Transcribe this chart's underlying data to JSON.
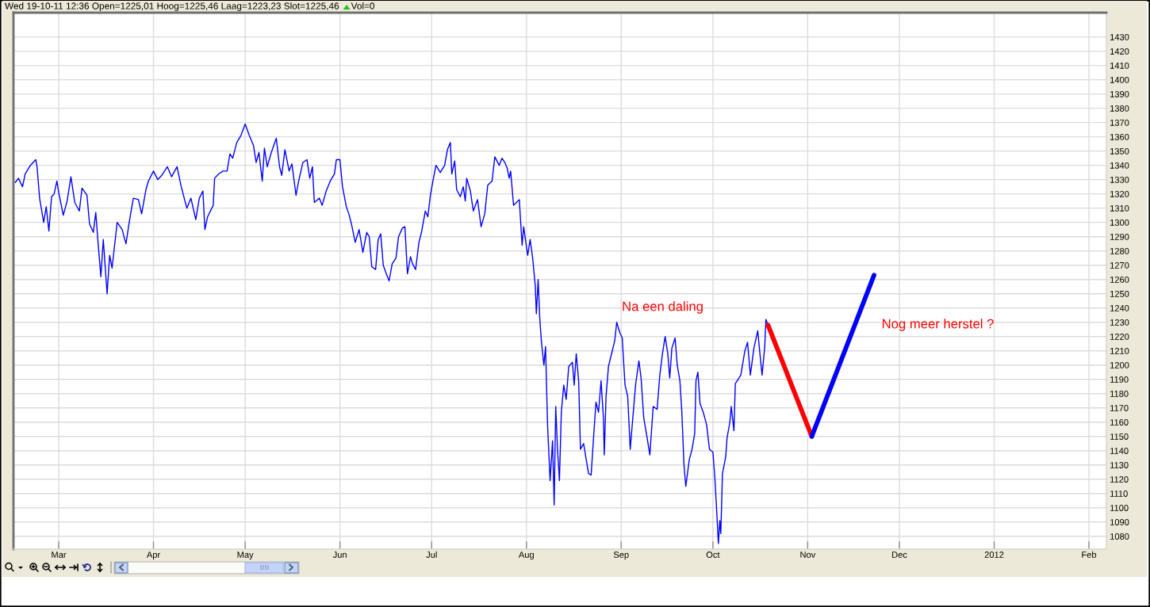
{
  "chart_data": {
    "type": "line",
    "annotations": [
      "Wed 19-10-11 12:36 Open=1225,01 Hoog=1225,46 Laag=1223,23 Slot=1225,46",
      "Vol=0",
      "Na een daling",
      "Nog meer herstel ?"
    ],
    "series": [
      {
        "color": "#0000ff",
        "x": [
          "2011-02-14T19:00",
          "2011-02-15T20:00",
          "2011-02-17T04:00",
          "2011-02-18T01:00",
          "2011-02-19T18:00",
          "2011-02-21T12:00",
          "2011-02-21T22:00",
          "2011-02-22T18:00",
          "2011-02-24T02:00",
          "2011-02-24T22:00",
          "2011-02-25T19:00",
          "2011-02-26T16:00",
          "2011-02-27T12:00",
          "2011-02-28T10:00",
          "2011-03-01",
          "2011-03-02T12:00",
          "2011-03-03T18:00",
          "2011-03-05",
          "2011-03-06T06:00",
          "2011-03-07T18:00",
          "2011-03-08T15:00",
          "2011-03-10T06:00",
          "2011-03-11T02:00",
          "2011-03-12T08:00",
          "2011-03-13T03:00",
          "2011-03-13T19:00",
          "2011-03-14T19:00",
          "2011-03-15T14:00",
          "2011-03-16T20:00",
          "2011-03-17T16:00",
          "2011-03-18T11:00",
          "2011-03-19T07:00",
          "2011-03-20T03:00",
          "2011-03-21T18:00",
          "2011-03-23",
          "2011-03-24T05:00",
          "2011-03-25T10:00",
          "2011-03-27T02:00",
          "2011-03-28T03:00",
          "2011-03-29T13:00",
          "2011-03-30T08:00",
          "2011-04-01",
          "2011-04-02T09:00",
          "2011-04-03T17:00",
          "2011-04-05T13:00",
          "2011-04-06T22:00",
          "2011-04-08T17:00",
          "2011-04-10T02:00",
          "2011-04-11T22:00",
          "2011-04-13T06:00",
          "2011-04-14T20:00",
          "2011-04-16",
          "2011-04-17T04:00",
          "2011-04-17T20:00",
          "2011-04-18T17:00",
          "2011-04-20T13:00",
          "2011-04-21",
          "2011-04-22T08:00",
          "2011-04-23T17:00",
          "2011-04-25T02:00",
          "2011-04-26",
          "2011-04-26T22:00",
          "2011-04-28T06:00",
          "2011-04-29T15:00",
          "2011-05-01",
          "2011-05-02T08:00",
          "2011-05-03T17:00",
          "2011-05-04T14:00",
          "2011-05-05T12:00",
          "2011-05-06T14:00",
          "2011-05-07T07:00",
          "2011-05-08T05:00",
          "2011-05-09T13:00",
          "2011-05-11T04:00",
          "2011-05-12T06:00",
          "2011-05-12T23:00",
          "2011-05-14",
          "2011-05-15T09:00",
          "2011-05-16T07:00",
          "2011-05-17T15:00",
          "2011-05-18T12:00",
          "2011-05-19T21:00",
          "2011-05-21T05:00",
          "2011-05-22T03:00",
          "2011-05-23",
          "2011-05-23T15:00",
          "2011-05-25T06:00",
          "2011-05-26T04:00",
          "2011-05-27T12:00",
          "2011-05-28T20:00",
          "2011-05-30T05:00",
          "2011-05-30T20:00",
          "2011-06-01",
          "2011-06-01T20:00",
          "2011-06-03T02:00",
          "2011-06-03T22:00",
          "2011-06-04T18:00",
          "2011-06-06",
          "2011-06-07T06:00",
          "2011-06-08T12:00",
          "2011-06-09T18:00",
          "2011-06-10T14:00",
          "2011-06-11T10:00",
          "2011-06-12T16:00",
          "2011-06-13T12:00",
          "2011-06-14T08:00",
          "2011-06-15T04:00",
          "2011-06-16",
          "2011-06-17T02:00",
          "2011-06-18T02:00",
          "2011-06-19T08:00",
          "2011-06-20T04:00",
          "2011-06-21T10:00",
          "2011-06-22T06:00",
          "2011-06-23T02:00",
          "2011-06-24T02:00",
          "2011-06-24T18:00",
          "2011-06-25T18:00",
          "2011-06-26T20:00",
          "2011-06-27T16:00",
          "2011-06-28T22:00",
          "2011-06-29T18:00",
          "2011-06-30T14:00",
          "2011-07-01T12:00",
          "2011-07-02T10:00",
          "2011-07-03T20:00",
          "2011-07-05T06:00",
          "2011-07-06T04:00",
          "2011-07-07T03:00",
          "2011-07-07T14:00",
          "2011-07-08T13:00",
          "2011-07-09T04:00",
          "2011-07-10T09:00",
          "2011-07-11T08:00",
          "2011-07-12",
          "2011-07-12T11:00",
          "2011-07-13T16:00",
          "2011-07-14T15:00",
          "2011-07-16",
          "2011-07-17T04:00",
          "2011-07-18T09:00",
          "2011-07-19T08:00",
          "2011-07-20T18:00",
          "2011-07-21T16:00",
          "2011-07-23T02:00",
          "2011-07-24",
          "2011-07-24T23:00",
          "2011-07-25T17:00",
          "2011-07-26T09:00",
          "2011-07-26T20:00",
          "2011-07-27T19:00",
          "2011-07-29T16:00",
          "2011-07-30T14:00",
          "2011-07-31T02:00",
          "2011-08-01T10:00",
          "2011-08-02T05:00",
          "2011-08-03T01:00",
          "2011-08-03T21:00",
          "2011-08-04T06:00",
          "2011-08-04T20:00",
          "2011-08-05T08:00",
          "2011-08-05T21:00",
          "2011-08-06T17:00",
          "2011-08-07T06:00",
          "2011-08-07T22:00",
          "2011-08-08T18:00",
          "2011-08-09T13:00",
          "2011-08-10T02:00",
          "2011-08-10T14:00",
          "2011-08-11T04:00",
          "2011-08-11T19:00",
          "2011-08-12T10:00",
          "2011-08-13T05:00",
          "2011-08-14",
          "2011-08-14T20:00",
          "2011-08-16T01:00",
          "2011-08-16T15:00",
          "2011-08-17T07:00",
          "2011-08-18T02:00",
          "2011-08-18T16:00",
          "2011-08-19T17:00",
          "2011-08-20T13:00",
          "2011-08-21T08:00",
          "2011-08-22T04:00",
          "2011-08-22T23:00",
          "2011-08-23T18:00",
          "2011-08-24T14:00",
          "2011-08-25T10:00",
          "2011-08-26T05:00",
          "2011-08-26T11:00",
          "2011-08-27T01:00",
          "2011-08-27T20:00",
          "2011-08-29T02:00",
          "2011-08-29T21:00",
          "2011-08-30T13:00",
          "2011-08-31T12:00",
          "2011-09-01T08:00",
          "2011-09-02T06:00",
          "2011-09-03T03:00",
          "2011-09-03T23:00",
          "2011-09-04T21:00",
          "2011-09-05T18:00",
          "2011-09-06T19:00",
          "2011-09-07T12:00",
          "2011-09-08T09:00",
          "2011-09-09T06:00",
          "2011-09-10T09:00",
          "2011-09-11T11:00",
          "2011-09-12T18:00",
          "2011-09-13T15:00",
          "2011-09-14T12:00",
          "2011-09-15T09:00",
          "2011-09-16T06:00",
          "2011-09-16T21:00",
          "2011-09-17T14:00",
          "2011-09-18T15:00",
          "2011-09-19T08:00",
          "2011-09-20T05:00",
          "2011-09-20T20:00",
          "2011-09-21T13:00",
          "2011-09-22T03:00",
          "2011-09-23T07:00",
          "2011-09-24T04:00",
          "2011-09-25T01:00",
          "2011-09-25T11:00",
          "2011-09-26T02:00",
          "2011-09-26T19:00",
          "2011-09-27T20:00",
          "2011-09-28T23:00",
          "2011-09-29T21:00",
          "2011-10-01",
          "2011-10-01T15:00",
          "2011-10-02T02:00",
          "2011-10-02T19:00",
          "2011-10-03T06:00",
          "2011-10-03T14:00",
          "2011-10-04T03:00",
          "2011-10-05T05:00",
          "2011-10-05T15:00",
          "2011-10-06T13:00",
          "2011-10-07",
          "2011-10-07T21:00",
          "2011-10-08T08:00",
          "2011-10-10T03:00",
          "2011-10-11T11:00",
          "2011-10-12T08:00",
          "2011-10-13T06:00",
          "2011-10-14T10:00",
          "2011-10-15T16:00",
          "2011-10-16T09:00",
          "2011-10-17T02:00",
          "2011-10-17T23:00",
          "2011-10-18T08:00",
          "2011-10-19T01:00"
        ],
        "values": [
          1328,
          1331,
          1325,
          1334,
          1340,
          1344,
          1339,
          1317,
          1300,
          1311,
          1294,
          1318,
          1320,
          1329,
          1321,
          1305,
          1315,
          1332,
          1314,
          1308,
          1324,
          1319,
          1299,
          1293,
          1307,
          1288,
          1262,
          1288,
          1250,
          1277,
          1268,
          1284,
          1300,
          1295,
          1285,
          1302,
          1317,
          1316,
          1306,
          1323,
          1329,
          1336,
          1330,
          1333,
          1339,
          1332,
          1339,
          1325,
          1310,
          1317,
          1302,
          1317,
          1322,
          1295,
          1304,
          1312,
          1331,
          1334,
          1336,
          1336,
          1348,
          1345,
          1356,
          1361,
          1369,
          1361,
          1354,
          1342,
          1349,
          1329,
          1352,
          1339,
          1349,
          1359,
          1339,
          1333,
          1351,
          1336,
          1341,
          1319,
          1329,
          1342,
          1344,
          1331,
          1339,
          1314,
          1317,
          1312,
          1322,
          1329,
          1334,
          1344,
          1344,
          1325,
          1311,
          1306,
          1299,
          1286,
          1295,
          1279,
          1293,
          1290,
          1269,
          1267,
          1288,
          1292,
          1270,
          1265,
          1259,
          1271,
          1275,
          1290,
          1296,
          1297,
          1264,
          1276,
          1271,
          1267,
          1286,
          1293,
          1308,
          1304,
          1319,
          1330,
          1340,
          1335,
          1340,
          1351,
          1356,
          1334,
          1343,
          1323,
          1318,
          1325,
          1315,
          1331,
          1322,
          1308,
          1316,
          1297,
          1306,
          1326,
          1329,
          1346,
          1340,
          1345,
          1342,
          1338,
          1331,
          1336,
          1312,
          1316,
          1284,
          1297,
          1277,
          1288,
          1275,
          1256,
          1236,
          1260,
          1234,
          1217,
          1200,
          1213,
          1158,
          1119,
          1147,
          1102,
          1171,
          1141,
          1119,
          1167,
          1186,
          1176,
          1199,
          1202,
          1186,
          1208,
          1189,
          1141,
          1145,
          1134,
          1124,
          1123,
          1149,
          1174,
          1167,
          1189,
          1162,
          1137,
          1178,
          1199,
          1210,
          1217,
          1230,
          1223,
          1219,
          1186,
          1178,
          1141,
          1165,
          1187,
          1203,
          1191,
          1163,
          1152,
          1137,
          1171,
          1169,
          1193,
          1208,
          1220,
          1208,
          1191,
          1212,
          1219,
          1200,
          1189,
          1167,
          1130,
          1115,
          1134,
          1141,
          1152,
          1189,
          1195,
          1173,
          1167,
          1158,
          1141,
          1139,
          1121,
          1104,
          1075,
          1091,
          1082,
          1124,
          1136,
          1149,
          1160,
          1171,
          1154,
          1187,
          1193,
          1210,
          1216,
          1193,
          1212,
          1224,
          1208,
          1193,
          1213,
          1232,
          1228
        ]
      },
      {
        "color": "#ff0000",
        "x": [
          "2011-10-19T01:00",
          "2011-11-02T08:00"
        ],
        "values": [
          1228,
          1150
        ]
      },
      {
        "color": "#0000ff",
        "x": [
          "2011-11-02T08:00",
          "2011-11-22T17:00"
        ],
        "values": [
          1150,
          1263
        ]
      }
    ],
    "xlim": [
      "2011-02-14T05:00",
      "2012-02-06T17:00"
    ],
    "xticks": [
      {
        "value": "2011-03-01",
        "label": "Mar"
      },
      {
        "value": "2011-04-01",
        "label": "Apr"
      },
      {
        "value": "2011-05-01",
        "label": "May"
      },
      {
        "value": "2011-06-01",
        "label": "Jun"
      },
      {
        "value": "2011-07-01",
        "label": "Jul"
      },
      {
        "value": "2011-08-01",
        "label": "Aug"
      },
      {
        "value": "2011-09-01",
        "label": "Sep"
      },
      {
        "value": "2011-10-01",
        "label": "Oct"
      },
      {
        "value": "2011-11-01",
        "label": "Nov"
      },
      {
        "value": "2011-12-01",
        "label": "Dec"
      },
      {
        "value": "2012-01-01",
        "label": "2012"
      },
      {
        "value": "2012-02-01",
        "label": "Feb"
      }
    ],
    "ylim": [
      1071,
      1447
    ],
    "yticks": [
      1080,
      1090,
      1100,
      1110,
      1120,
      1130,
      1140,
      1150,
      1160,
      1170,
      1180,
      1190,
      1200,
      1210,
      1220,
      1230,
      1240,
      1250,
      1260,
      1270,
      1280,
      1290,
      1300,
      1310,
      1320,
      1330,
      1340,
      1350,
      1360,
      1370,
      1380,
      1390,
      1400,
      1410,
      1420,
      1430
    ],
    "grid": true
  }
}
